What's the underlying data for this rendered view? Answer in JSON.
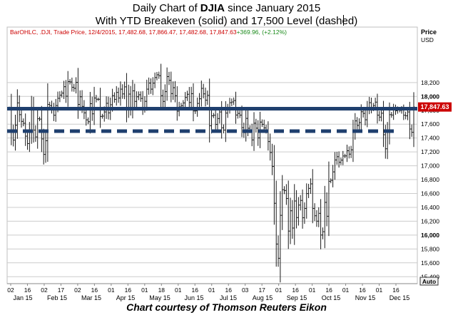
{
  "title_prefix": "Daily Chart of ",
  "title_bold": "DJIA",
  "title_suffix": " since January 2015",
  "subtitle": "With YTD Breakeven (solid) and 17,500 Level (dashed)",
  "legend": {
    "prefix": "BarOHLC, .DJI, Trade Price, 12/4/2015, 17,482.68, 17,866.47, 17,482.68, 17,847.63",
    "change": "+369.96, (+2.12%)"
  },
  "price_label": "Price",
  "currency_label": "USD",
  "current_price_label": "17,847.63",
  "auto_button": "Auto",
  "footer": "Chart courtesy of Thomson Reuters Eikon",
  "colors": {
    "bars": "#1a1a1a",
    "breakeven": "#1f3f6e",
    "level": "#1f3f6e",
    "price_tag": "#cc0000",
    "legend_text": "#cc0000",
    "change_text": "#1a8a1a",
    "grid": "#cccccc"
  },
  "chart_data": {
    "type": "ohlc",
    "ylim": [
      15300,
      19000
    ],
    "y_ticks": [
      15400,
      15600,
      15800,
      16000,
      16200,
      16400,
      16600,
      16800,
      17000,
      17200,
      17400,
      17600,
      17800,
      18000,
      18200
    ],
    "y_tick_labels": [
      "15,400",
      "15,600",
      "15,800",
      "16,000",
      "16,200",
      "16,400",
      "16,600",
      "16,800",
      "17,000",
      "17,200",
      "17,400",
      "17,600",
      "17,800",
      "18,000",
      "18,200"
    ],
    "bold_ticks": [
      16000,
      18000
    ],
    "x_day_labels": [
      "02",
      "16",
      "02",
      "17",
      "02",
      "16",
      "01",
      "16",
      "01",
      "18",
      "01",
      "16",
      "01",
      "16",
      "03",
      "17",
      "01",
      "16",
      "01",
      "16",
      "01",
      "16",
      "01",
      "16"
    ],
    "x_month_labels": [
      "Jan 15",
      "Feb 15",
      "Mar 15",
      "Apr 15",
      "May 15",
      "Jun 15",
      "Jul 15",
      "Aug 15",
      "Sep 15",
      "Oct 15",
      "Nov 15",
      "Dec 15"
    ],
    "breakeven_level": 17823,
    "dashed_level": 17500,
    "last_close": 17847.63,
    "closes": [
      17833,
      17501,
      17371,
      17584,
      17907,
      17737,
      17640,
      17613,
      17427,
      17320,
      17511,
      17813,
      17515,
      17416,
      17678,
      17673,
      17387,
      17164,
      17361,
      17885,
      17868,
      17824,
      17729,
      17868,
      17973,
      18019,
      18048,
      18140,
      18003,
      18214,
      18209,
      18132,
      18117,
      18203,
      17885,
      17995,
      17856,
      17763,
      17662,
      17635,
      17895,
      17749,
      17977,
      17959,
      17959,
      17712,
      17716,
      17776,
      17901,
      17763,
      17880,
      18011,
      17958,
      18058,
      17977,
      18105,
      18036,
      18138,
      17826,
      18034,
      17841,
      18080,
      17928,
      17995,
      18024,
      17971,
      17840,
      17929,
      18105,
      18192,
      18105,
      18191,
      18272,
      18312,
      18299,
      18011,
      17928,
      18069,
      18286,
      18232,
      18041,
      18126,
      18010,
      17787,
      17848,
      17866,
      17906,
      17985,
      18031,
      17913,
      18040,
      17790,
      17791,
      17899,
      17966,
      18116,
      18037,
      17946,
      18016,
      17577,
      17720,
      17729,
      17596,
      17681,
      17776,
      17548,
      17515,
      17760,
      17823,
      17910,
      17920,
      17941,
      17732,
      17755,
      17730,
      17550,
      17477,
      17683,
      17541,
      17515,
      17373,
      17614,
      17542,
      17402,
      17630,
      17598,
      17546,
      17512,
      17349,
      17191,
      16990,
      16459,
      15871,
      15666,
      16285,
      16654,
      16643,
      16528,
      16058,
      16351,
      16102,
      16492,
      16253,
      16433,
      16500,
      16250,
      16384,
      16599,
      16674,
      16739,
      16384,
      16279,
      16201,
      16314,
      16001,
      16049,
      16472,
      16272,
      16776,
      16790,
      16912,
      17084,
      17131,
      17050,
      17081,
      17141,
      17142,
      17217,
      17168,
      17230,
      17489,
      17647,
      17581,
      17623,
      17779,
      17755,
      17663,
      17828,
      17910,
      17828,
      17867,
      17918,
      17730,
      17702,
      17758,
      17448,
      17245,
      17483,
      17737,
      17732,
      17823,
      17793,
      17813,
      17798,
      17813,
      17729,
      17720,
      17776,
      17530,
      17483,
      17848
    ]
  }
}
